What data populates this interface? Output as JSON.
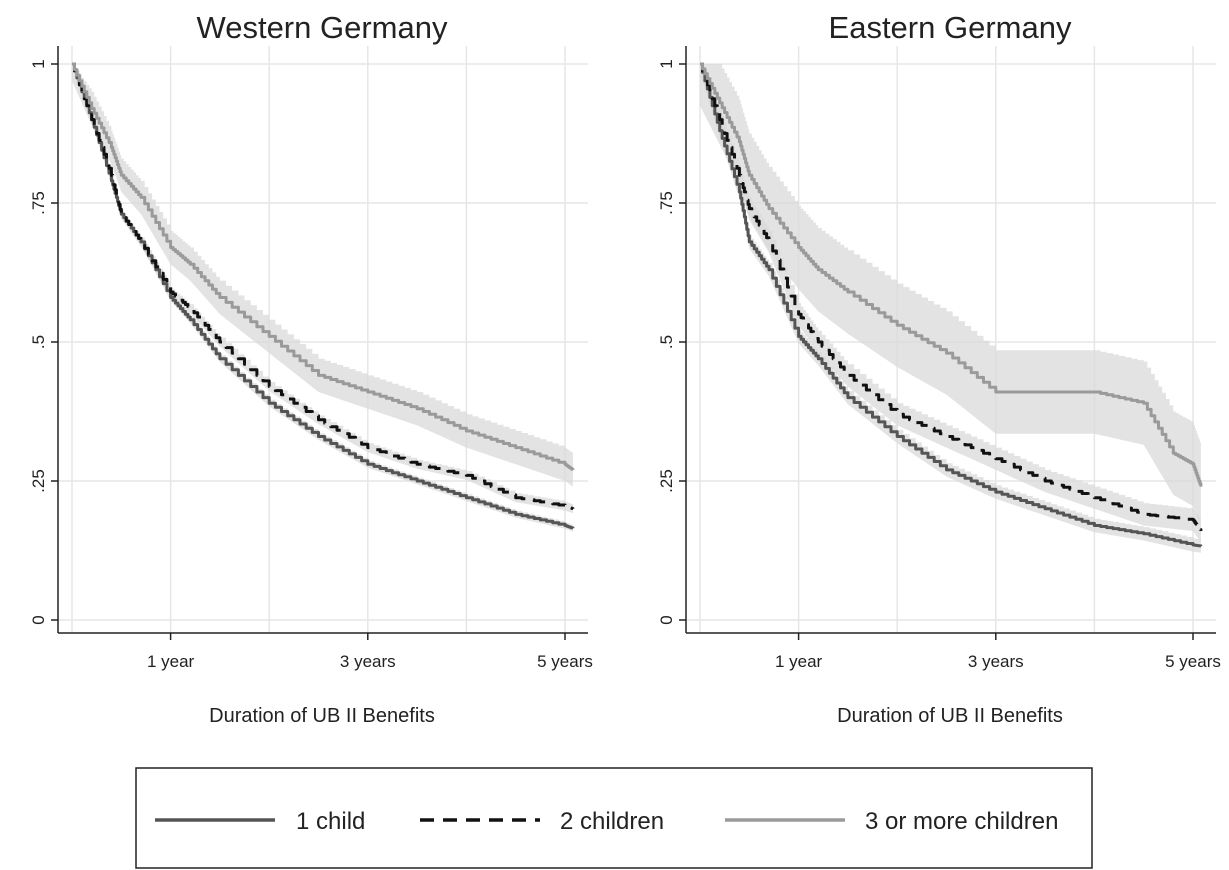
{
  "chart_data": [
    {
      "type": "line",
      "title": "Western Germany",
      "xlabel": "Duration of UB II Benefits",
      "ylabel": "",
      "xlim": [
        0,
        5.1
      ],
      "ylim": [
        0,
        1
      ],
      "x_ticks": [
        {
          "value": 1,
          "label": "1 year"
        },
        {
          "value": 3,
          "label": "3 years"
        },
        {
          "value": 5,
          "label": "5 years"
        }
      ],
      "y_ticks": [
        {
          "value": 0,
          "label": "0"
        },
        {
          "value": 0.25,
          "label": ".25"
        },
        {
          "value": 0.5,
          "label": ".5"
        },
        {
          "value": 0.75,
          "label": ".75"
        },
        {
          "value": 1,
          "label": "1"
        }
      ],
      "x_grid": [
        0,
        1,
        2,
        3,
        4,
        5
      ],
      "y_grid": [
        0,
        0.25,
        0.5,
        0.75,
        1
      ],
      "series": [
        {
          "name": "1 child",
          "color": "#555555",
          "dash": "",
          "x": [
            0,
            0.2,
            0.4,
            0.5,
            0.7,
            1.0,
            1.2,
            1.5,
            2.0,
            2.5,
            3.0,
            3.5,
            4.0,
            4.5,
            5.0,
            5.08
          ],
          "y": [
            1,
            0.9,
            0.79,
            0.73,
            0.68,
            0.58,
            0.54,
            0.47,
            0.39,
            0.33,
            0.28,
            0.25,
            0.22,
            0.19,
            0.17,
            0.165
          ],
          "band_half": 0.006
        },
        {
          "name": "2 children",
          "color": "#111111",
          "dash": "14,9",
          "x": [
            0,
            0.2,
            0.4,
            0.5,
            0.7,
            1.0,
            1.2,
            1.5,
            2.0,
            2.5,
            3.0,
            3.5,
            4.0,
            4.5,
            5.0,
            5.08
          ],
          "y": [
            1,
            0.9,
            0.8,
            0.73,
            0.68,
            0.59,
            0.56,
            0.5,
            0.42,
            0.36,
            0.31,
            0.28,
            0.26,
            0.22,
            0.205,
            0.2
          ],
          "band_half": 0.008
        },
        {
          "name": "3 or more children",
          "color": "#9a9a9a",
          "dash": "",
          "x": [
            0,
            0.2,
            0.4,
            0.5,
            0.7,
            1.0,
            1.2,
            1.5,
            2.0,
            2.5,
            3.0,
            3.5,
            4.0,
            4.5,
            5.0,
            5.08
          ],
          "y": [
            1,
            0.92,
            0.85,
            0.8,
            0.76,
            0.67,
            0.64,
            0.58,
            0.51,
            0.44,
            0.41,
            0.38,
            0.34,
            0.31,
            0.28,
            0.27
          ],
          "band_half": 0.03
        }
      ]
    },
    {
      "type": "line",
      "title": "Eastern Germany",
      "xlabel": "Duration of UB II Benefits",
      "ylabel": "",
      "xlim": [
        0,
        5.1
      ],
      "ylim": [
        0,
        1
      ],
      "x_ticks": [
        {
          "value": 1,
          "label": "1 year"
        },
        {
          "value": 3,
          "label": "3 years"
        },
        {
          "value": 5,
          "label": "5 years"
        }
      ],
      "y_ticks": [
        {
          "value": 0,
          "label": "0"
        },
        {
          "value": 0.25,
          "label": ".25"
        },
        {
          "value": 0.5,
          "label": ".5"
        },
        {
          "value": 0.75,
          "label": ".75"
        },
        {
          "value": 1,
          "label": "1"
        }
      ],
      "x_grid": [
        0,
        1,
        2,
        3,
        4,
        5
      ],
      "y_grid": [
        0,
        0.25,
        0.5,
        0.75,
        1
      ],
      "series": [
        {
          "name": "1 child",
          "color": "#555555",
          "dash": "",
          "x": [
            0,
            0.2,
            0.4,
            0.5,
            0.7,
            1.0,
            1.2,
            1.5,
            2.0,
            2.5,
            3.0,
            3.5,
            4.0,
            4.5,
            5.0,
            5.08
          ],
          "y": [
            1,
            0.88,
            0.77,
            0.68,
            0.63,
            0.51,
            0.47,
            0.4,
            0.33,
            0.27,
            0.23,
            0.2,
            0.17,
            0.155,
            0.135,
            0.133
          ],
          "band_half": 0.012
        },
        {
          "name": "2 children",
          "color": "#111111",
          "dash": "14,9",
          "x": [
            0,
            0.2,
            0.4,
            0.5,
            0.7,
            1.0,
            1.2,
            1.5,
            2.0,
            2.5,
            3.0,
            3.5,
            4.0,
            4.5,
            5.0,
            5.08
          ],
          "y": [
            1,
            0.9,
            0.8,
            0.74,
            0.68,
            0.55,
            0.5,
            0.44,
            0.37,
            0.33,
            0.29,
            0.25,
            0.22,
            0.19,
            0.18,
            0.16
          ],
          "band_half": 0.02
        },
        {
          "name": "3 or more children",
          "color": "#9a9a9a",
          "dash": "",
          "x": [
            0,
            0.2,
            0.4,
            0.5,
            0.7,
            1.0,
            1.2,
            1.5,
            2.0,
            2.5,
            3.0,
            3.5,
            4.0,
            4.5,
            4.8,
            5.0,
            5.08
          ],
          "y": [
            1,
            0.93,
            0.86,
            0.8,
            0.74,
            0.67,
            0.63,
            0.59,
            0.53,
            0.48,
            0.41,
            0.41,
            0.41,
            0.39,
            0.3,
            0.28,
            0.24
          ],
          "band_half": 0.075
        }
      ]
    }
  ],
  "legend": {
    "position": "bottom",
    "items": [
      {
        "label": "1 child",
        "color": "#555555",
        "dash": ""
      },
      {
        "label": "2 children",
        "color": "#111111",
        "dash": "14,9"
      },
      {
        "label": "3 or more children",
        "color": "#9a9a9a",
        "dash": ""
      }
    ]
  }
}
